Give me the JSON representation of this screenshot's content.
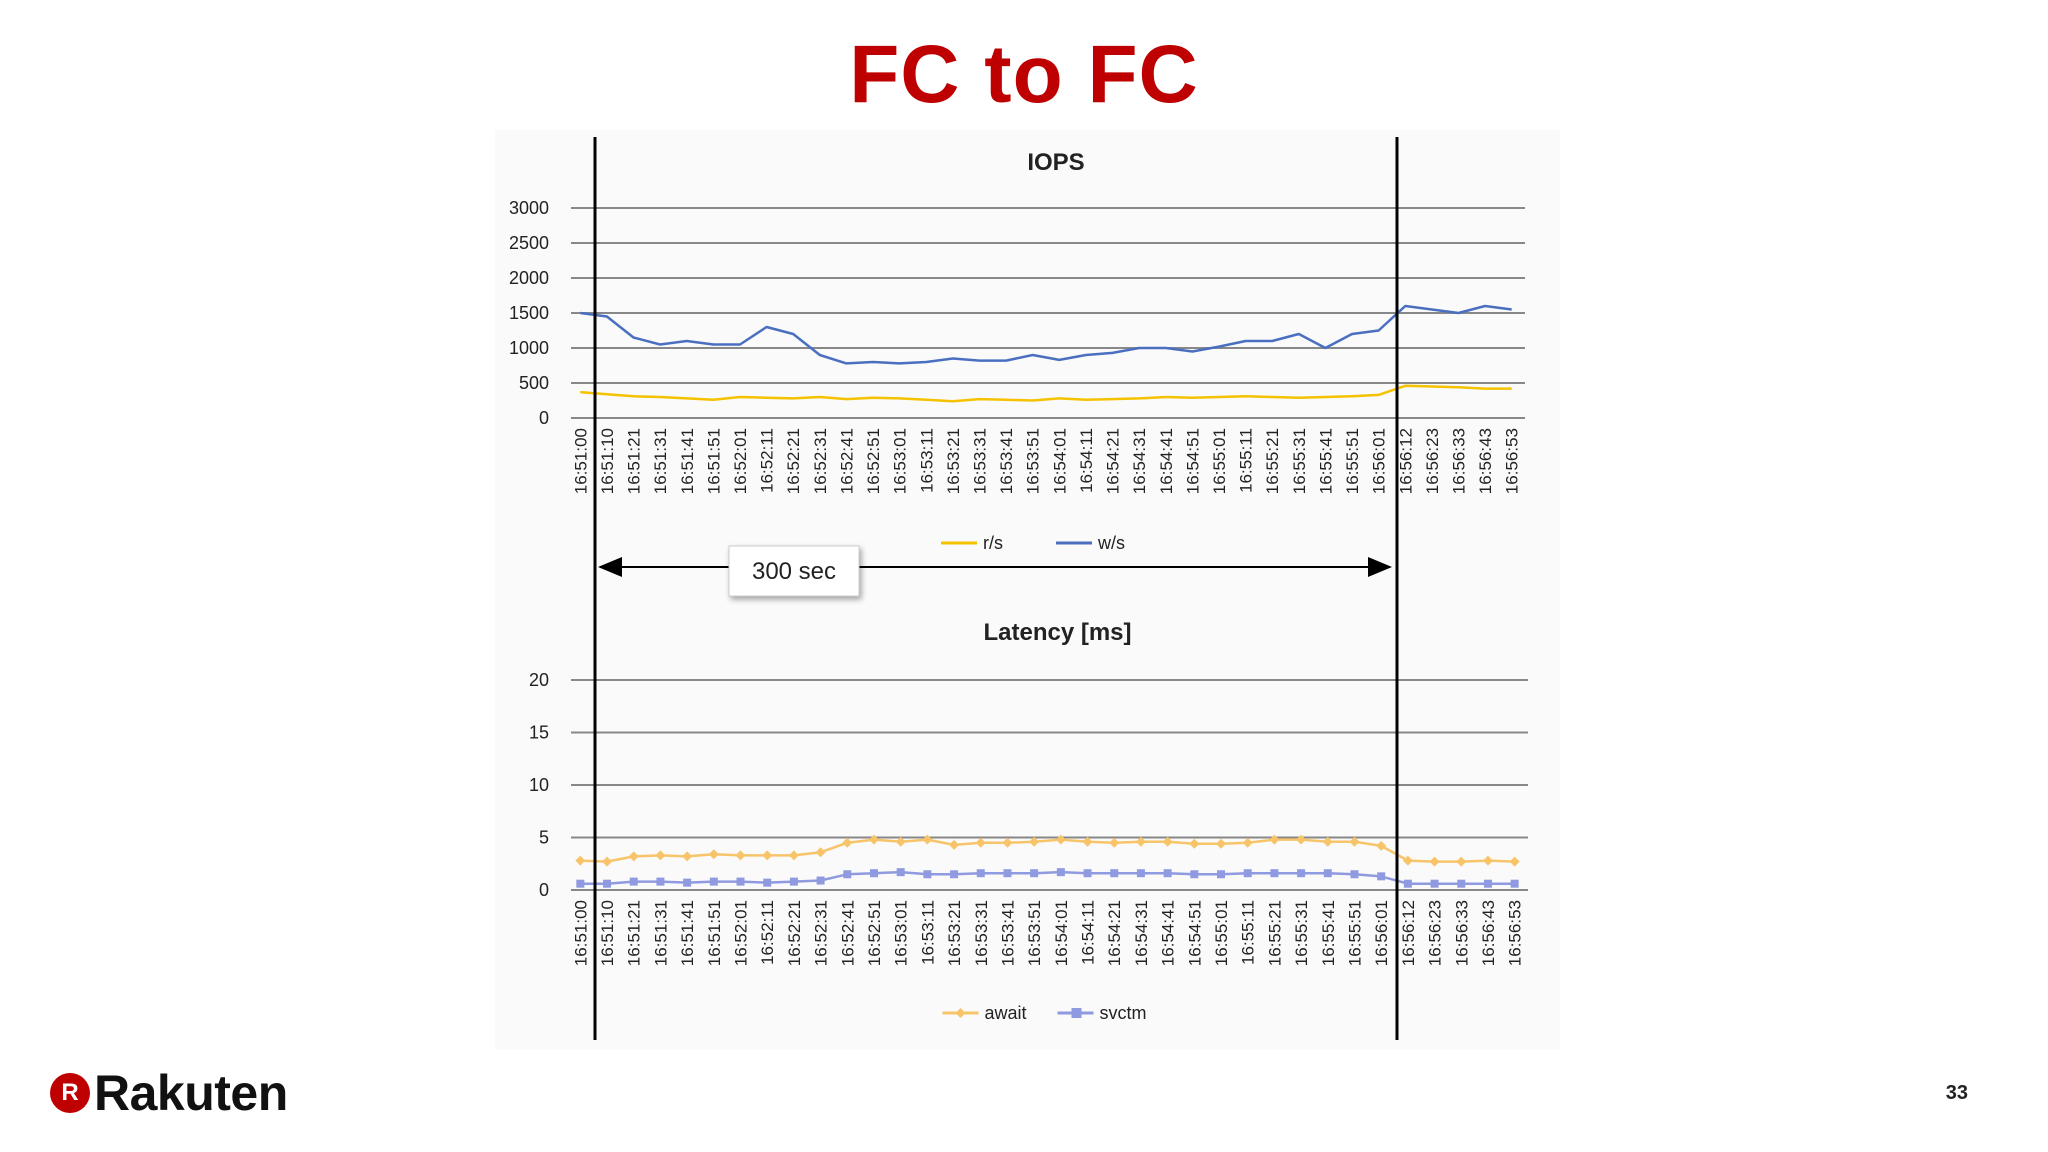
{
  "slide": {
    "title": "FC to FC",
    "page_number": "33",
    "logo_text": "Rakuten",
    "logo_badge": "R",
    "annotation": "300 sec"
  },
  "colors": {
    "title": "#bf0000",
    "rs": "#f5c200",
    "ws": "#4a6fc0",
    "await": "#f7c46a",
    "svctm": "#8f9ae0",
    "grid": "#888888"
  },
  "chart_data": [
    {
      "type": "line",
      "title": "IOPS",
      "ylim": [
        0,
        3000
      ],
      "yticks": [
        0,
        500,
        1000,
        1500,
        2000,
        2500,
        3000
      ],
      "x_tick_labels": [
        "16:51:00",
        "16:51:10",
        "16:51:21",
        "16:51:31",
        "16:51:41",
        "16:51:51",
        "16:52:01",
        "16:52:11",
        "16:52:21",
        "16:52:31",
        "16:52:41",
        "16:52:51",
        "16:53:01",
        "16:53:11",
        "16:53:21",
        "16:53:31",
        "16:53:41",
        "16:53:51",
        "16:54:01",
        "16:54:11",
        "16:54:21",
        "16:54:31",
        "16:54:41",
        "16:54:51",
        "16:55:01",
        "16:55:11",
        "16:55:21",
        "16:55:31",
        "16:55:41",
        "16:55:51",
        "16:56:01",
        "16:56:12",
        "16:56:23",
        "16:56:33",
        "16:56:43",
        "16:56:53"
      ],
      "legend_position": "bottom",
      "series": [
        {
          "name": "r/s",
          "values": [
            370,
            340,
            310,
            300,
            280,
            260,
            300,
            290,
            280,
            300,
            270,
            290,
            280,
            260,
            240,
            270,
            260,
            250,
            280,
            260,
            270,
            280,
            300,
            290,
            300,
            310,
            300,
            290,
            300,
            310,
            330,
            460,
            450,
            440,
            420,
            420
          ]
        },
        {
          "name": "w/s",
          "values": [
            1500,
            1450,
            1150,
            1050,
            1100,
            1050,
            1050,
            1300,
            1200,
            900,
            780,
            800,
            780,
            800,
            850,
            820,
            820,
            900,
            830,
            900,
            930,
            1000,
            1000,
            950,
            1020,
            1100,
            1100,
            1200,
            1000,
            1200,
            1250,
            1600,
            1550,
            1500,
            1600,
            1550
          ]
        }
      ]
    },
    {
      "type": "line",
      "title": "Latency [ms]",
      "ylim": [
        0,
        20
      ],
      "yticks": [
        0,
        5,
        10,
        15,
        20
      ],
      "x_tick_labels": [
        "16:51:00",
        "16:51:10",
        "16:51:21",
        "16:51:31",
        "16:51:41",
        "16:51:51",
        "16:52:01",
        "16:52:11",
        "16:52:21",
        "16:52:31",
        "16:52:41",
        "16:52:51",
        "16:53:01",
        "16:53:11",
        "16:53:21",
        "16:53:31",
        "16:53:41",
        "16:53:51",
        "16:54:01",
        "16:54:11",
        "16:54:21",
        "16:54:31",
        "16:54:41",
        "16:54:51",
        "16:55:01",
        "16:55:11",
        "16:55:21",
        "16:55:31",
        "16:55:41",
        "16:55:51",
        "16:56:01",
        "16:56:12",
        "16:56:23",
        "16:56:33",
        "16:56:43",
        "16:56:53"
      ],
      "legend_position": "bottom",
      "series": [
        {
          "name": "await",
          "values": [
            2.8,
            2.7,
            3.2,
            3.3,
            3.2,
            3.4,
            3.3,
            3.3,
            3.3,
            3.6,
            4.5,
            4.8,
            4.6,
            4.8,
            4.3,
            4.5,
            4.5,
            4.6,
            4.8,
            4.6,
            4.5,
            4.6,
            4.6,
            4.4,
            4.4,
            4.5,
            4.8,
            4.8,
            4.6,
            4.6,
            4.2,
            2.8,
            2.7,
            2.7,
            2.8,
            2.7
          ]
        },
        {
          "name": "svctm",
          "values": [
            0.6,
            0.6,
            0.8,
            0.8,
            0.7,
            0.8,
            0.8,
            0.7,
            0.8,
            0.9,
            1.5,
            1.6,
            1.7,
            1.5,
            1.5,
            1.6,
            1.6,
            1.6,
            1.7,
            1.6,
            1.6,
            1.6,
            1.6,
            1.5,
            1.5,
            1.6,
            1.6,
            1.6,
            1.6,
            1.5,
            1.3,
            0.6,
            0.6,
            0.6,
            0.6,
            0.6
          ]
        }
      ]
    }
  ]
}
